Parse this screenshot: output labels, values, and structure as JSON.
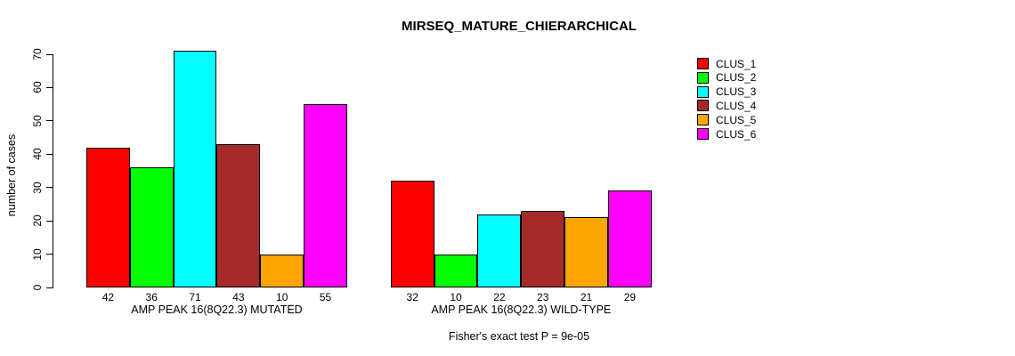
{
  "chart_data": {
    "type": "bar",
    "title": "MIRSEQ_MATURE_CHIERARCHICAL",
    "ylabel": "number of cases",
    "xlabel": "",
    "ylim": [
      0,
      70
    ],
    "yticks": [
      0,
      10,
      20,
      30,
      40,
      50,
      60,
      70
    ],
    "grid": false,
    "legend_position": "right-outside",
    "bar_value_labels_shown": true,
    "series": [
      {
        "name": "CLUS_1",
        "color": "#FF0000"
      },
      {
        "name": "CLUS_2",
        "color": "#00FF00"
      },
      {
        "name": "CLUS_3",
        "color": "#00FFFF"
      },
      {
        "name": "CLUS_4",
        "color": "#A52A2A"
      },
      {
        "name": "CLUS_5",
        "color": "#FFA500"
      },
      {
        "name": "CLUS_6",
        "color": "#FF00FF"
      }
    ],
    "groups": [
      {
        "label": "AMP PEAK 16(8Q22.3) MUTATED",
        "values": [
          42,
          36,
          71,
          43,
          10,
          55
        ]
      },
      {
        "label": "AMP PEAK 16(8Q22.3) WILD-TYPE",
        "values": [
          32,
          10,
          22,
          23,
          21,
          29
        ]
      }
    ],
    "annotation": "Fisher's exact test P = 9e-05"
  }
}
